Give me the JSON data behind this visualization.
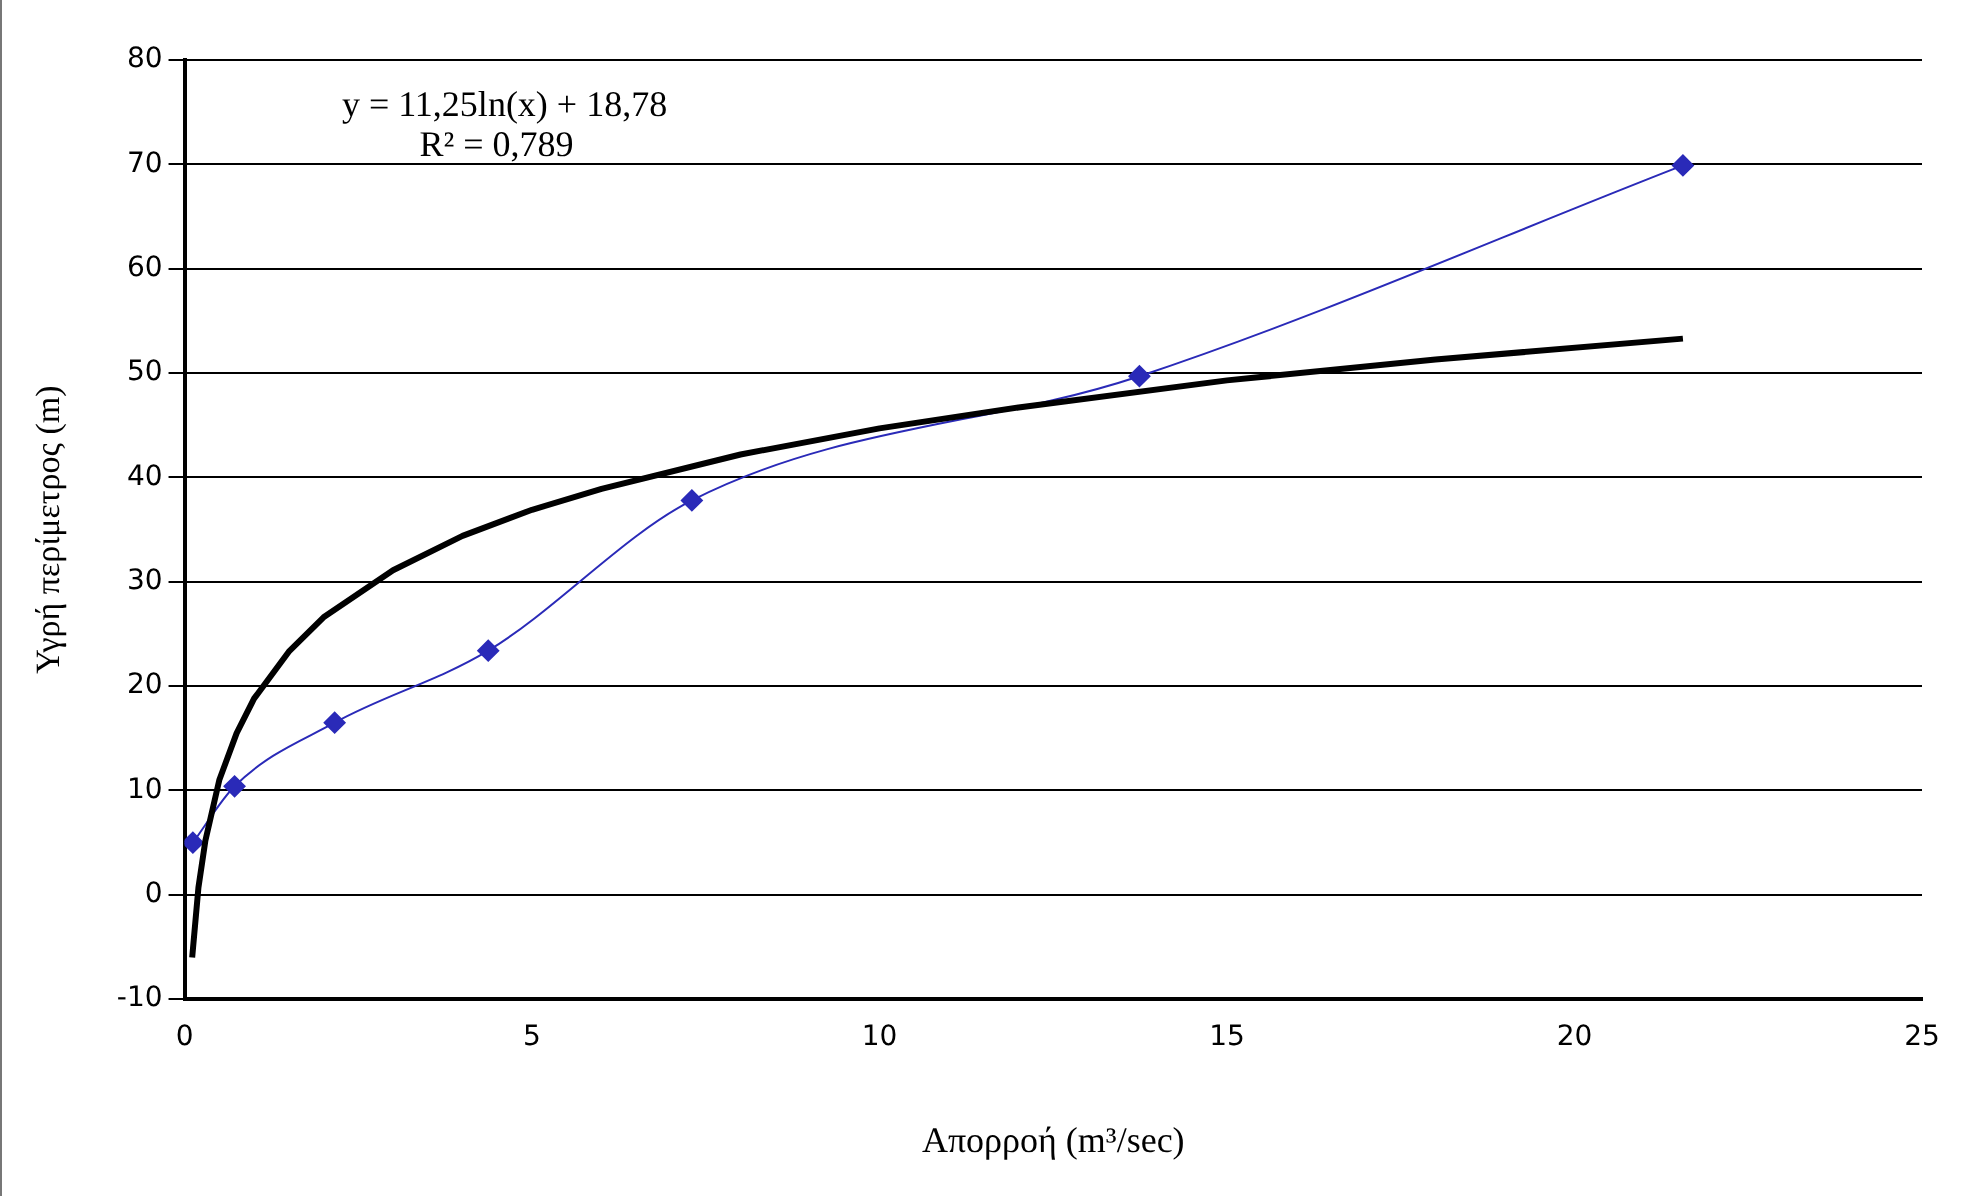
{
  "chart_data": {
    "type": "line",
    "xlabel": "Απορροή (m³/sec)",
    "ylabel": "Υγρή περίμετρος (m)",
    "annotations": [
      "y = 11,25ln(x) + 18,78",
      "R² = 0,789"
    ],
    "series": [
      {
        "color": "#2a2ab8",
        "marker": "diamond",
        "x": [
          0.12,
          0.72,
          2.16,
          4.37,
          7.3,
          13.74,
          21.56
        ],
        "values": [
          5,
          10.4,
          16.5,
          23.4,
          37.8,
          49.7,
          69.9
        ]
      },
      {
        "color": "#000000",
        "marker": "none",
        "x": [
          0.11,
          0.2,
          0.3,
          0.5,
          0.75,
          1,
          1.5,
          2,
          3,
          4,
          5,
          6,
          8,
          10,
          12,
          15,
          18,
          21.56
        ],
        "values": [
          -6,
          0.7,
          5.2,
          11,
          15.5,
          18.8,
          23.3,
          26.6,
          31.1,
          34.4,
          36.9,
          38.9,
          42.2,
          44.7,
          46.7,
          49.3,
          51.3,
          53.3
        ]
      }
    ],
    "xlim": [
      0,
      25
    ],
    "xticks": [
      0,
      5,
      10,
      15,
      20,
      25
    ],
    "ylim": [
      -10,
      80
    ],
    "yticks": [
      -10,
      0,
      10,
      20,
      30,
      40,
      50,
      60,
      70,
      80
    ],
    "grid": "y",
    "legend": false
  }
}
